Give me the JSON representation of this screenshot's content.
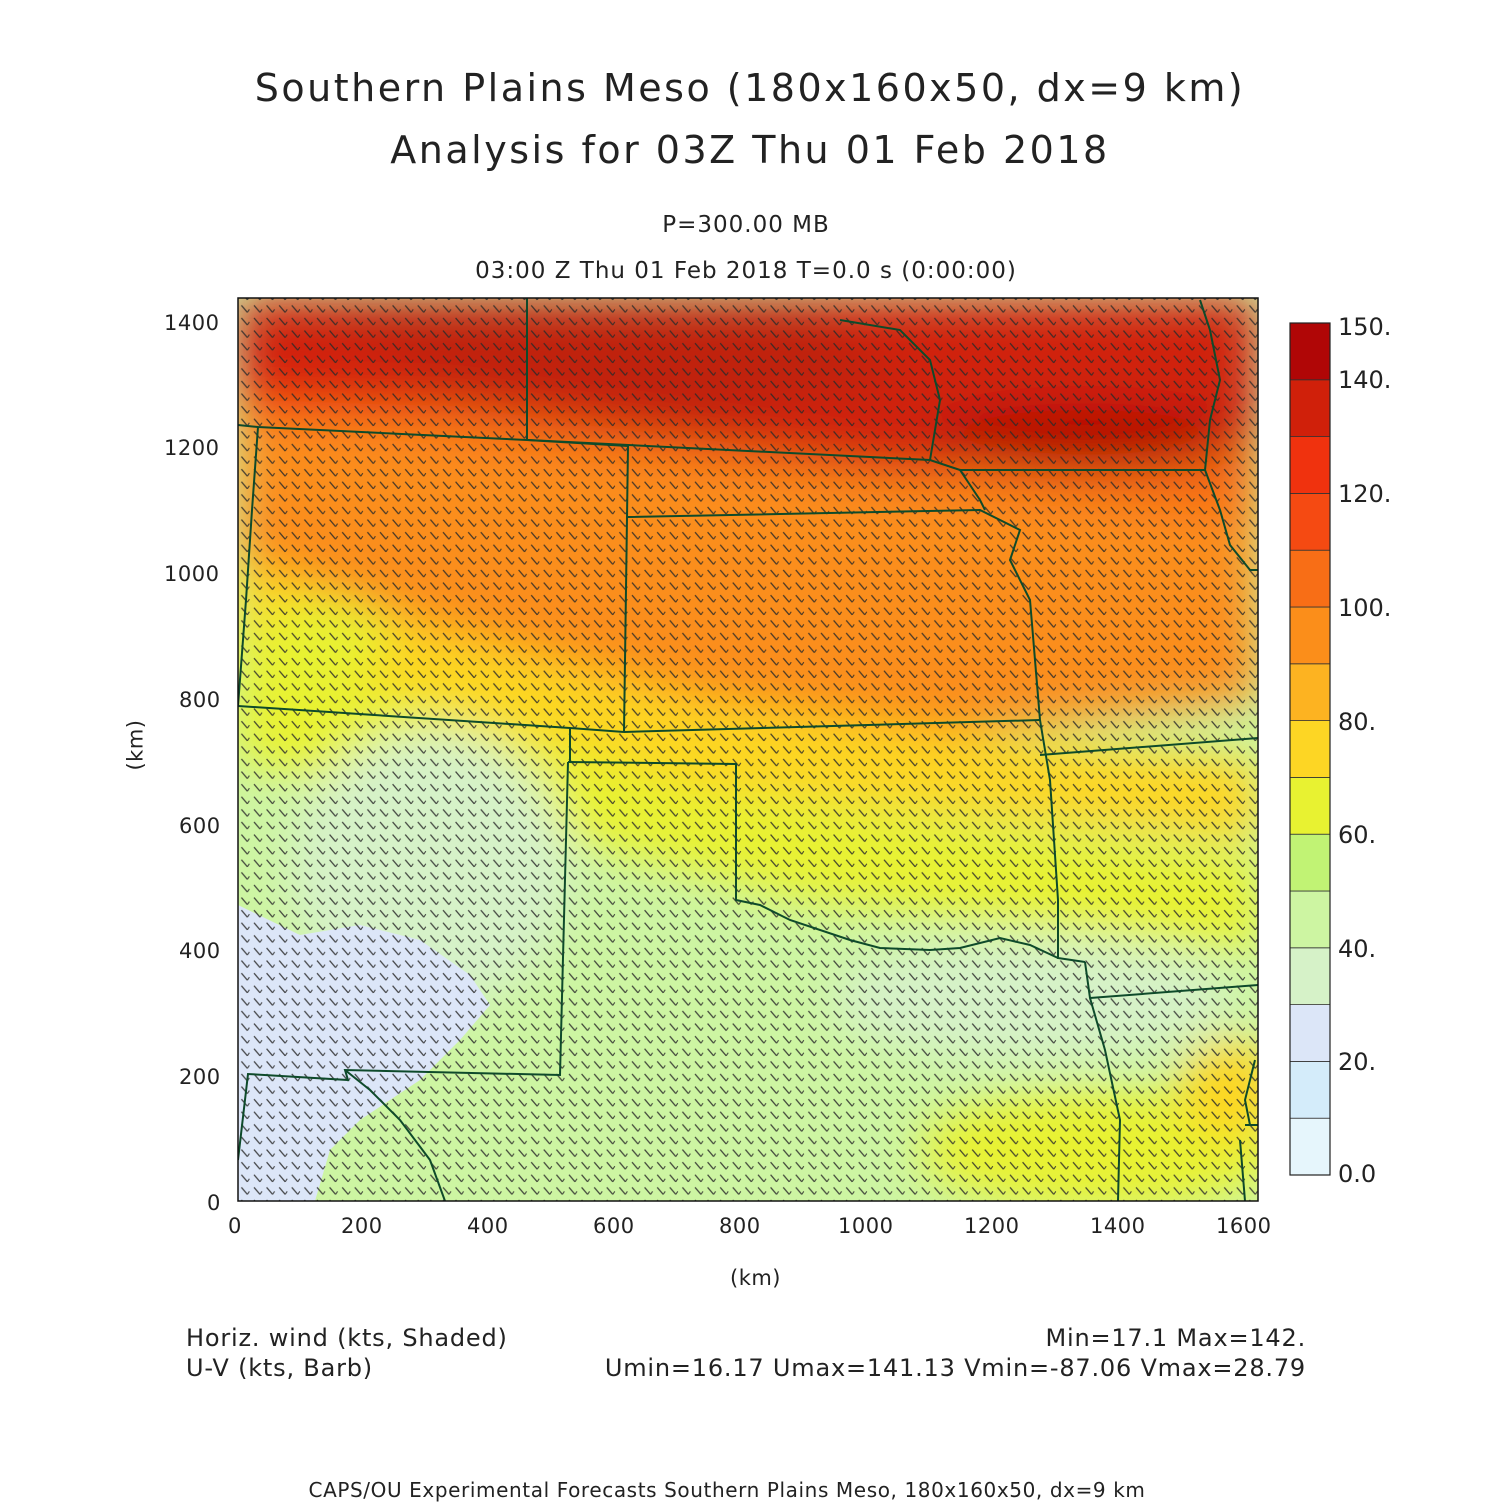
{
  "titles": {
    "line1": "Southern Plains Meso (180x160x50, dx=9 km)",
    "line2": "Analysis for 03Z Thu 01 Feb 2018",
    "level": "P=300.00 MB",
    "time": "03:00 Z Thu 01 Feb 2018    T=0.0 s (0:00:00)"
  },
  "axes": {
    "x_label": "(km)",
    "y_label": "(km)",
    "x_ticks": [
      "0",
      "200",
      "400",
      "600",
      "800",
      "1000",
      "1200",
      "1400",
      "1600"
    ],
    "y_ticks": [
      "0",
      "200",
      "400",
      "600",
      "800",
      "1000",
      "1200",
      "1400"
    ],
    "x_range": [
      0,
      1620
    ],
    "y_range": [
      0,
      1440
    ]
  },
  "colorbar": {
    "labels": [
      "0.0",
      "20.",
      "40.",
      "60.",
      "80.",
      "100.",
      "120.",
      "140.",
      "150."
    ],
    "levels": [
      0,
      10,
      20,
      30,
      40,
      50,
      60,
      70,
      80,
      90,
      100,
      110,
      120,
      130,
      140,
      150
    ],
    "colors": [
      "#e6f6fc",
      "#d4ecfa",
      "#dce6f8",
      "#d6f2c8",
      "#cdf5a2",
      "#c1f374",
      "#e8f231",
      "#fdd624",
      "#fdb321",
      "#fb8e1a",
      "#f86e16",
      "#f54a12",
      "#f0320e",
      "#d0200a",
      "#b00606"
    ]
  },
  "field_info": {
    "left_line1": "Horiz. wind (kts, Shaded)",
    "left_line2": "U-V (kts, Barb)",
    "right_line1": "Min=17.1 Max=142.",
    "right_line2": "Umin=16.17  Umax=141.13  Vmin=-87.06  Vmax=28.79"
  },
  "footer": "CAPS/OU Experimental Forecasts   Southern Plains Meso, 180x160x50, dx=9 km",
  "map": {
    "boundary_color": "#0e4a2a",
    "barb_color": "#2a2a2a"
  }
}
